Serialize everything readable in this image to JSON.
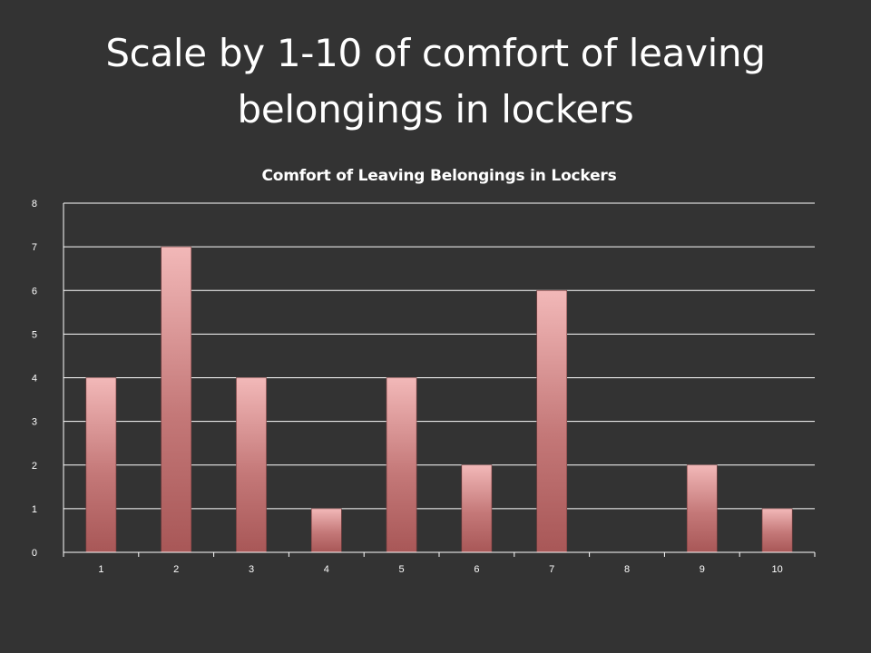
{
  "slide": {
    "title": "Scale by 1-10 of comfort of leaving belongings in lockers"
  },
  "chart_data": {
    "type": "bar",
    "title": "Comfort of Leaving Belongings in Lockers",
    "categories": [
      "1",
      "2",
      "3",
      "4",
      "5",
      "6",
      "7",
      "8",
      "9",
      "10"
    ],
    "values": [
      4,
      7,
      4,
      1,
      4,
      2,
      6,
      0,
      2,
      1
    ],
    "xlabel": "",
    "ylabel": "",
    "ylim": [
      0,
      8
    ],
    "yticks": [
      0,
      1,
      2,
      3,
      4,
      5,
      6,
      7,
      8
    ],
    "grid": true,
    "legend": "none",
    "colors": {
      "background": "#333333",
      "bar_top": "#f2b8b8",
      "bar_mid": "#c47878",
      "bar_bottom": "#a85757",
      "grid": "#ffffff",
      "text": "#ffffff"
    }
  }
}
